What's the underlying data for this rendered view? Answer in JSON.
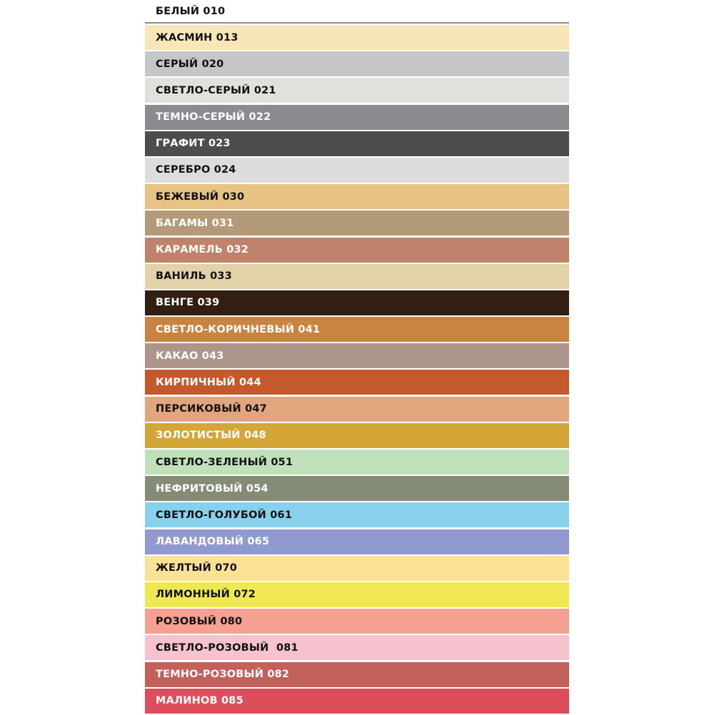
{
  "swatches": [
    {
      "label": "БЕЛЫЙ 010",
      "color": "#ffffff",
      "text_color": "#111111"
    },
    {
      "label": "ЖАСМИН 013",
      "color": "#f8e6b8",
      "text_color": "#111111"
    },
    {
      "label": "СЕРЫЙ 020",
      "color": "#c5c6c8",
      "text_color": "#111111"
    },
    {
      "label": "СВЕТЛО-СЕРЫЙ 021",
      "color": "#e0e0dd",
      "text_color": "#111111"
    },
    {
      "label": "ТЕМНО-СЕРЫЙ 022",
      "color": "#8a8b8e",
      "text_color": "#ffffff"
    },
    {
      "label": "ГРАФИТ 023",
      "color": "#4d4d4f",
      "text_color": "#ffffff"
    },
    {
      "label": "СЕРЕБРО 024",
      "color": "#dcdcdc",
      "text_color": "#111111"
    },
    {
      "label": "БЕЖЕВЫЙ 030",
      "color": "#e6c385",
      "text_color": "#111111"
    },
    {
      "label": "БАГАМЫ 031",
      "color": "#b59a7a",
      "text_color": "#ffffff"
    },
    {
      "label": "КАРАМЕЛЬ 032",
      "color": "#c0826b",
      "text_color": "#ffffff"
    },
    {
      "label": "ВАНИЛЬ 033",
      "color": "#e2d2a8",
      "text_color": "#111111"
    },
    {
      "label": "ВЕНГЕ 039",
      "color": "#331e12",
      "text_color": "#ffffff"
    },
    {
      "label": "СВЕТЛО-КОРИЧНЕВЫЙ 041",
      "color": "#c98442",
      "text_color": "#ffffff"
    },
    {
      "label": "КАКАО 043",
      "color": "#ad958c",
      "text_color": "#ffffff"
    },
    {
      "label": "КИРПИЧНЫЙ 044",
      "color": "#c45a2c",
      "text_color": "#ffffff"
    },
    {
      "label": "ПЕРСИКОВЫЙ 047",
      "color": "#e2a67f",
      "text_color": "#111111"
    },
    {
      "label": "ЗОЛОТИСТЫЙ 048",
      "color": "#d4a537",
      "text_color": "#ffffff"
    },
    {
      "label": "СВЕТЛО-ЗЕЛЕНЫЙ 051",
      "color": "#bfe0b8",
      "text_color": "#111111"
    },
    {
      "label": "НЕФРИТОВЫЙ 054",
      "color": "#858c76",
      "text_color": "#ffffff"
    },
    {
      "label": "СВЕТЛО-ГОЛУБОЙ 061",
      "color": "#87d1ec",
      "text_color": "#111111"
    },
    {
      "label": "ЛАВАНДОВЫЙ 065",
      "color": "#919ad0",
      "text_color": "#ffffff"
    },
    {
      "label": "ЖЕЛТЫЙ 070",
      "color": "#fbe196",
      "text_color": "#111111"
    },
    {
      "label": "ЛИМОННЫЙ 072",
      "color": "#f0e852",
      "text_color": "#111111"
    },
    {
      "label": "РОЗОВЫЙ 080",
      "color": "#f5a192",
      "text_color": "#111111"
    },
    {
      "label": "СВЕТЛО-РОЗОВЫЙ  081",
      "color": "#f6c2ce",
      "text_color": "#111111"
    },
    {
      "label": "ТЕМНО-РОЗОВЫЙ 082",
      "color": "#c2605a",
      "text_color": "#ffffff"
    },
    {
      "label": "МАЛИНОВ 085",
      "color": "#dc4e5c",
      "text_color": "#ffffff"
    }
  ]
}
